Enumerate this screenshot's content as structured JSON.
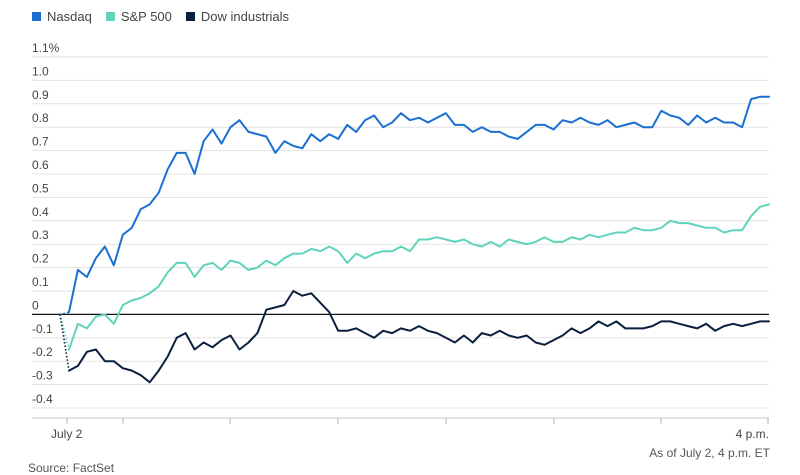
{
  "chart_data": {
    "type": "line",
    "legend_position": "top-left",
    "grid": true,
    "ylim": [
      -0.4,
      1.1
    ],
    "y_ticks": [
      1.1,
      1.0,
      0.9,
      0.8,
      0.7,
      0.6,
      0.5,
      0.4,
      0.3,
      0.2,
      0.1,
      0,
      -0.1,
      -0.2,
      -0.3,
      -0.4
    ],
    "y_tick_labels": [
      "1.1%",
      "1.0",
      "0.9",
      "0.8",
      "0.7",
      "0.6",
      "0.5",
      "0.4",
      "0.3",
      "0.2",
      "0.1",
      "0",
      "-0.1",
      "-0.2",
      "-0.3",
      "-0.4"
    ],
    "x_tick_labels": [
      "July 2",
      "4 p.m."
    ],
    "series": [
      {
        "name": "Nasdaq",
        "color": "#1b6fd1",
        "values": [
          0.0,
          0.01,
          0.19,
          0.16,
          0.24,
          0.29,
          0.21,
          0.34,
          0.37,
          0.45,
          0.47,
          0.52,
          0.62,
          0.69,
          0.69,
          0.6,
          0.74,
          0.79,
          0.73,
          0.8,
          0.83,
          0.78,
          0.77,
          0.76,
          0.69,
          0.74,
          0.72,
          0.71,
          0.77,
          0.74,
          0.77,
          0.75,
          0.81,
          0.78,
          0.83,
          0.85,
          0.8,
          0.82,
          0.86,
          0.83,
          0.84,
          0.82,
          0.84,
          0.86,
          0.81,
          0.81,
          0.78,
          0.8,
          0.78,
          0.78,
          0.76,
          0.75,
          0.78,
          0.81,
          0.81,
          0.79,
          0.83,
          0.82,
          0.84,
          0.82,
          0.81,
          0.83,
          0.8,
          0.81,
          0.82,
          0.8,
          0.8,
          0.87,
          0.85,
          0.84,
          0.81,
          0.85,
          0.82,
          0.84,
          0.82,
          0.82,
          0.8,
          0.92,
          0.93,
          0.93
        ]
      },
      {
        "name": "S&P 500",
        "color": "#5fd4bb",
        "values": [
          0.0,
          -0.15,
          -0.04,
          -0.06,
          -0.01,
          0.0,
          -0.04,
          0.04,
          0.06,
          0.07,
          0.09,
          0.12,
          0.18,
          0.22,
          0.22,
          0.16,
          0.21,
          0.22,
          0.19,
          0.23,
          0.22,
          0.19,
          0.2,
          0.23,
          0.21,
          0.24,
          0.26,
          0.26,
          0.28,
          0.27,
          0.29,
          0.27,
          0.22,
          0.26,
          0.24,
          0.26,
          0.27,
          0.27,
          0.29,
          0.27,
          0.32,
          0.32,
          0.33,
          0.32,
          0.31,
          0.32,
          0.3,
          0.29,
          0.31,
          0.29,
          0.32,
          0.31,
          0.3,
          0.31,
          0.33,
          0.31,
          0.31,
          0.33,
          0.32,
          0.34,
          0.33,
          0.34,
          0.35,
          0.35,
          0.37,
          0.36,
          0.36,
          0.37,
          0.4,
          0.39,
          0.39,
          0.38,
          0.37,
          0.37,
          0.35,
          0.36,
          0.36,
          0.42,
          0.46,
          0.47
        ]
      },
      {
        "name": "Dow industrials",
        "color": "#0b1f3f",
        "values": [
          0.0,
          -0.24,
          -0.22,
          -0.16,
          -0.15,
          -0.2,
          -0.2,
          -0.23,
          -0.24,
          -0.26,
          -0.29,
          -0.24,
          -0.18,
          -0.1,
          -0.08,
          -0.15,
          -0.12,
          -0.14,
          -0.11,
          -0.09,
          -0.15,
          -0.12,
          -0.08,
          0.02,
          0.03,
          0.04,
          0.1,
          0.08,
          0.09,
          0.05,
          0.01,
          -0.07,
          -0.07,
          -0.06,
          -0.08,
          -0.1,
          -0.07,
          -0.08,
          -0.06,
          -0.07,
          -0.05,
          -0.07,
          -0.08,
          -0.1,
          -0.12,
          -0.09,
          -0.12,
          -0.08,
          -0.09,
          -0.07,
          -0.09,
          -0.1,
          -0.09,
          -0.12,
          -0.13,
          -0.11,
          -0.09,
          -0.06,
          -0.08,
          -0.06,
          -0.03,
          -0.05,
          -0.03,
          -0.06,
          -0.06,
          -0.06,
          -0.05,
          -0.03,
          -0.03,
          -0.04,
          -0.05,
          -0.06,
          -0.04,
          -0.07,
          -0.05,
          -0.04,
          -0.05,
          -0.04,
          -0.03,
          -0.03
        ]
      }
    ],
    "as_of": "As of July 2, 4 p.m. ET",
    "source": "Source: FactSet"
  }
}
